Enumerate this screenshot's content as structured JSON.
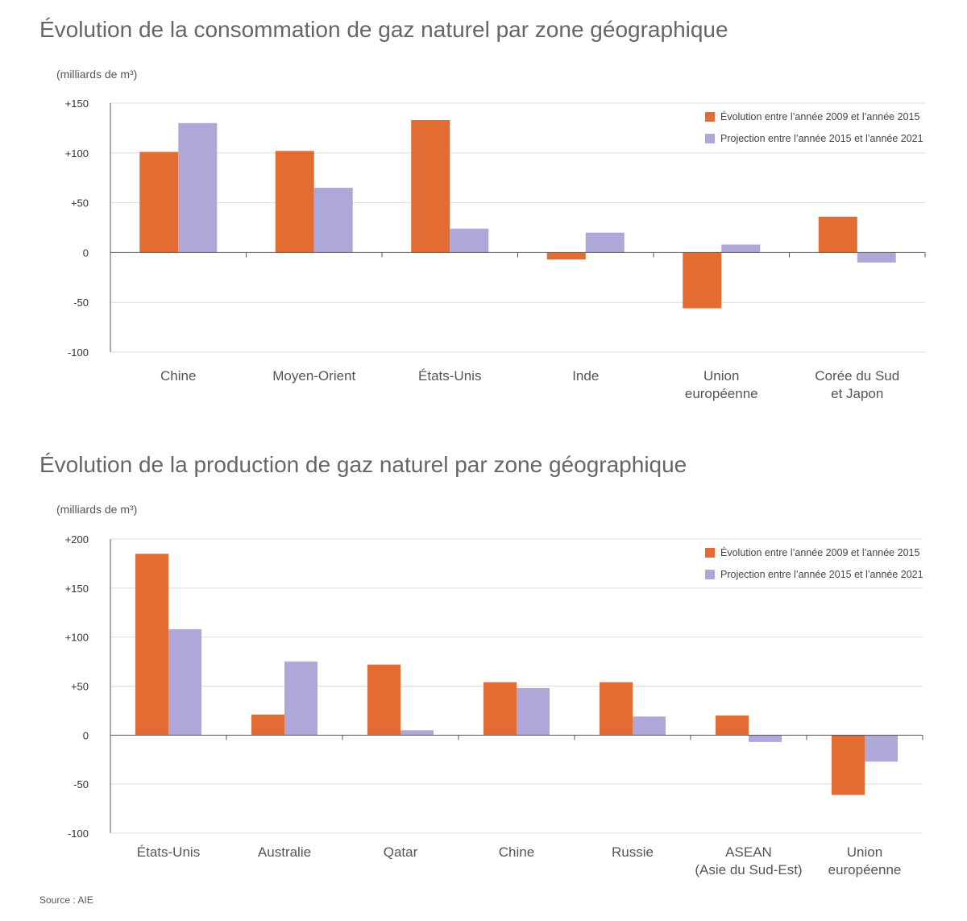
{
  "colors": {
    "evolution": "#E36C33",
    "projection": "#ADA8D8",
    "grid": "#dddddd",
    "axis": "#555555"
  },
  "source": "Source : AIE",
  "chart_data": [
    {
      "type": "bar",
      "title": "Évolution de la consommation de gaz naturel par zone géographique",
      "ylabel": "(milliards de m³)",
      "ylim": [
        -100,
        150
      ],
      "yticks": [
        150,
        100,
        50,
        0,
        -50,
        -100
      ],
      "ytick_labels": [
        "+150",
        "+100",
        "+50",
        "0",
        "-50",
        "-100"
      ],
      "categories": [
        [
          "Chine"
        ],
        [
          "Moyen-Orient"
        ],
        [
          "États-Unis"
        ],
        [
          "Inde"
        ],
        [
          "Union",
          "européenne"
        ],
        [
          "Corée du Sud",
          "et Japon"
        ]
      ],
      "legend_position": "top-right",
      "grid": true,
      "series": [
        {
          "name": "Évolution entre l’année 2009 et l’année 2015",
          "color_key": "evolution",
          "values": [
            101,
            102,
            133,
            -7,
            -56,
            36
          ]
        },
        {
          "name": "Projection entre l’année 2015 et l’année 2021",
          "color_key": "projection",
          "values": [
            130,
            65,
            24,
            20,
            8,
            -10
          ]
        }
      ]
    },
    {
      "type": "bar",
      "title": "Évolution de la production de gaz naturel par zone géographique",
      "ylabel": "(milliards de m³)",
      "ylim": [
        -100,
        200
      ],
      "yticks": [
        200,
        150,
        100,
        50,
        0,
        -50,
        -100
      ],
      "ytick_labels": [
        "+200",
        "+150",
        "+100",
        "+50",
        "0",
        "-50",
        "-100"
      ],
      "categories": [
        [
          "États-Unis"
        ],
        [
          "Australie"
        ],
        [
          "Qatar"
        ],
        [
          "Chine"
        ],
        [
          "Russie"
        ],
        [
          "ASEAN",
          "(Asie du Sud-Est)"
        ],
        [
          "Union",
          "européenne"
        ]
      ],
      "legend_position": "top-right",
      "grid": true,
      "series": [
        {
          "name": "Évolution entre l’année 2009 et l’année 2015",
          "color_key": "evolution",
          "values": [
            185,
            21,
            72,
            54,
            54,
            20,
            -61
          ]
        },
        {
          "name": "Projection entre l’année 2015 et l’année 2021",
          "color_key": "projection",
          "values": [
            108,
            75,
            5,
            48,
            19,
            -7,
            -27
          ]
        }
      ]
    }
  ]
}
